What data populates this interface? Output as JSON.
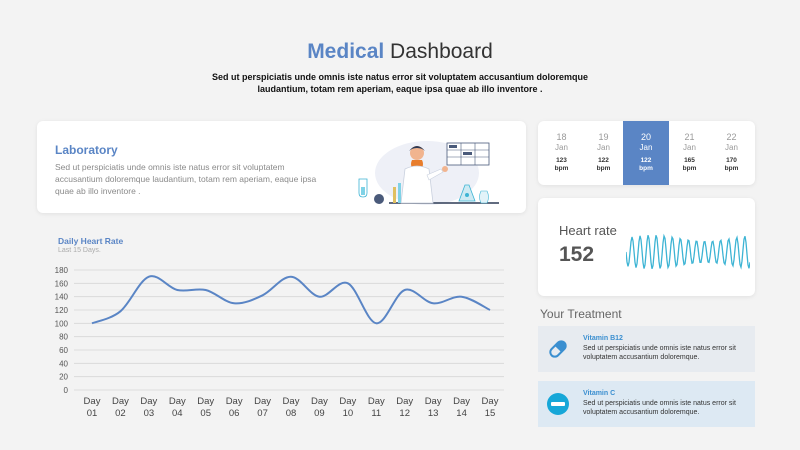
{
  "header": {
    "title_accent": "Medical",
    "title_rest": " Dashboard",
    "subtitle": "Sed ut perspiciatis unde omnis iste natus error sit voluptatem accusantium doloremque laudantium, totam rem aperiam, eaque ipsa quae ab illo inventore ."
  },
  "lab": {
    "title": "Laboratory",
    "text": "Sed ut perspiciatis unde omnis iste natus error sit voluptatem accusantium doloremque laudantium, totam rem aperiam, eaque ipsa quae ab illo inventore ."
  },
  "dates": [
    {
      "day": "18",
      "month": "Jan",
      "value": "123",
      "unit": "bpm",
      "active": false
    },
    {
      "day": "19",
      "month": "Jan",
      "value": "122",
      "unit": "bpm",
      "active": false
    },
    {
      "day": "20",
      "month": "Jan",
      "value": "122",
      "unit": "bpm",
      "active": true
    },
    {
      "day": "21",
      "month": "Jan",
      "value": "165",
      "unit": "bpm",
      "active": false
    },
    {
      "day": "22",
      "month": "Jan",
      "value": "170",
      "unit": "bpm",
      "active": false
    }
  ],
  "heart_rate": {
    "label": "Heart rate",
    "value": "152"
  },
  "chart_data": {
    "type": "line",
    "title": "Daily Heart Rate",
    "subtitle": "Last 15 Days.",
    "xlabel": "",
    "ylabel": "",
    "categories": [
      "Day 01",
      "Day 02",
      "Day 03",
      "Day 04",
      "Day 05",
      "Day 06",
      "Day 07",
      "Day 08",
      "Day 09",
      "Day 10",
      "Day 11",
      "Day 12",
      "Day 13",
      "Day 14",
      "Day 15"
    ],
    "values": [
      100,
      118,
      170,
      150,
      150,
      130,
      142,
      170,
      140,
      160,
      100,
      150,
      130,
      140,
      120
    ],
    "ylim": [
      0,
      180
    ],
    "yticks": [
      0,
      20,
      40,
      60,
      80,
      100,
      120,
      140,
      160,
      180
    ],
    "grid": true,
    "color": "#5a85c5"
  },
  "treatment": {
    "title": "Your Treatment",
    "items": [
      {
        "name": "Vitamin B12",
        "text": "Sed ut perspiciatis unde omnis iste natus error sit voluptatem accusantium doloremque.",
        "icon": "capsule-icon"
      },
      {
        "name": "Vitamin C",
        "text": "Sed ut perspiciatis unde omnis iste natus error sit voluptatem accusantium doloremque.",
        "icon": "tablet-icon"
      }
    ]
  },
  "colors": {
    "accent": "#5a85c5",
    "wave": "#3db4d4",
    "treat_icon": "#3b8fd0",
    "tablet": "#16a7d8"
  }
}
